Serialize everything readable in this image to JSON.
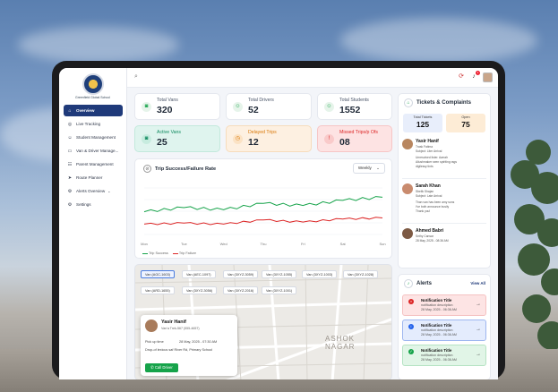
{
  "sidebar": {
    "logo_text": "Greenfield Global School",
    "items": [
      {
        "label": "Overview",
        "icon": "home-icon",
        "active": true
      },
      {
        "label": "Live Tracking",
        "icon": "location-icon"
      },
      {
        "label": "Student Management",
        "icon": "student-icon"
      },
      {
        "label": "Van & Driver Manage...",
        "icon": "van-icon"
      },
      {
        "label": "Parent Management",
        "icon": "parent-icon"
      },
      {
        "label": "Route Planner",
        "icon": "route-icon"
      },
      {
        "label": "Alerts Overview",
        "icon": "alert-icon",
        "has_chevron": true
      },
      {
        "label": "Settings",
        "icon": "gear-icon"
      }
    ]
  },
  "topbar": {
    "notification_count": "1"
  },
  "stats": {
    "total_vans": {
      "label": "Total Vans",
      "value": "320"
    },
    "total_drivers": {
      "label": "Total Drivers",
      "value": "52"
    },
    "total_students": {
      "label": "Total Students",
      "value": "1552"
    },
    "active_vans": {
      "label": "Active Vans",
      "value": "25"
    },
    "delayed_trips": {
      "label": "Delayed Trips",
      "value": "12"
    },
    "missed_trips": {
      "label": "Missed Trips/p Ofs",
      "value": "08"
    }
  },
  "chart": {
    "title": "Trip Success/Failure Rate",
    "period": "Weekly",
    "legend_success": "Trip Success",
    "legend_failure": "Trip Failure"
  },
  "chart_data": {
    "type": "line",
    "x": [
      "Mon",
      "Tue",
      "Wed",
      "Thu",
      "Fri",
      "Sat",
      "Sun"
    ],
    "series": [
      {
        "name": "Trip Success",
        "values": [
          62,
          66,
          64,
          70,
          68,
          73,
          76
        ],
        "color": "#16a34a"
      },
      {
        "name": "Trip Failure",
        "values": [
          50,
          51,
          50,
          54,
          52,
          55,
          56
        ],
        "color": "#dc2626"
      }
    ],
    "colors": {
      "success": "#16a34a",
      "failure": "#dc2626"
    }
  },
  "map": {
    "chips": [
      "Van (AGC-1603)",
      "Van (AEC-1097)",
      "Van (3XYZ-3059)",
      "Van (3XYZ-1055)",
      "Van (3XYZ-1003)",
      "Van (3XYZ-1028)",
      "Van (ARD-1655)",
      "Van (3XYZ-3056)",
      "Van (3XYZ-2016)",
      "Van (3XYZ-1001)"
    ],
    "area_label_1": "ASHOK",
    "area_label_2": "NAGAR",
    "driver": {
      "name": "Yasir Hanif",
      "subtitle": "Van'a Trek-567 (555-4657)",
      "pickup_label": "Pick up time",
      "pickup_value": "28 May, 2025 - 07:30 AM",
      "drop": "Drop-of lexicus saf River Rd, Primary School",
      "call_label": "Call Driver"
    }
  },
  "tickets": {
    "title": "Tickets & Complaints",
    "total_label": "Total Tickets",
    "total_value": "125",
    "open_label": "Open",
    "open_value": "75",
    "items": [
      {
        "name": "Yasir Hanif",
        "role": "Trask Fatima",
        "subject": "Subject: Liter Arrival",
        "l1": "Unresolved lister. Aarrah",
        "l2": "Aliushmaker seen sptriting rags",
        "l3": "digilessy tints"
      },
      {
        "name": "Sarah Khan",
        "role": "Sbelik Shajan",
        "subject": "Subject: Late Arrival",
        "l1": "Than van has been amy sons",
        "l2": "I've both announce busily",
        "l3": "Thank you!"
      },
      {
        "name": "Ahmed Babri",
        "role": "Sethy Cansar",
        "subject": "28 May, 2025 - 08:36 AM",
        "l1": "",
        "l2": "",
        "l3": ""
      }
    ]
  },
  "alerts": {
    "title": "Alerts",
    "view_all": "View All",
    "items": [
      {
        "title": "Notification Title",
        "desc": "notification description",
        "time": "28 May, 2025 - 06:36 AM",
        "kind": "error"
      },
      {
        "title": "Notification Title",
        "desc": "notification description",
        "time": "28 May, 2025 - 06:36 AM",
        "kind": "info"
      },
      {
        "title": "Notification Title",
        "desc": "notification description",
        "time": "28 May, 2025 - 06:36 AM",
        "kind": "success"
      }
    ]
  }
}
